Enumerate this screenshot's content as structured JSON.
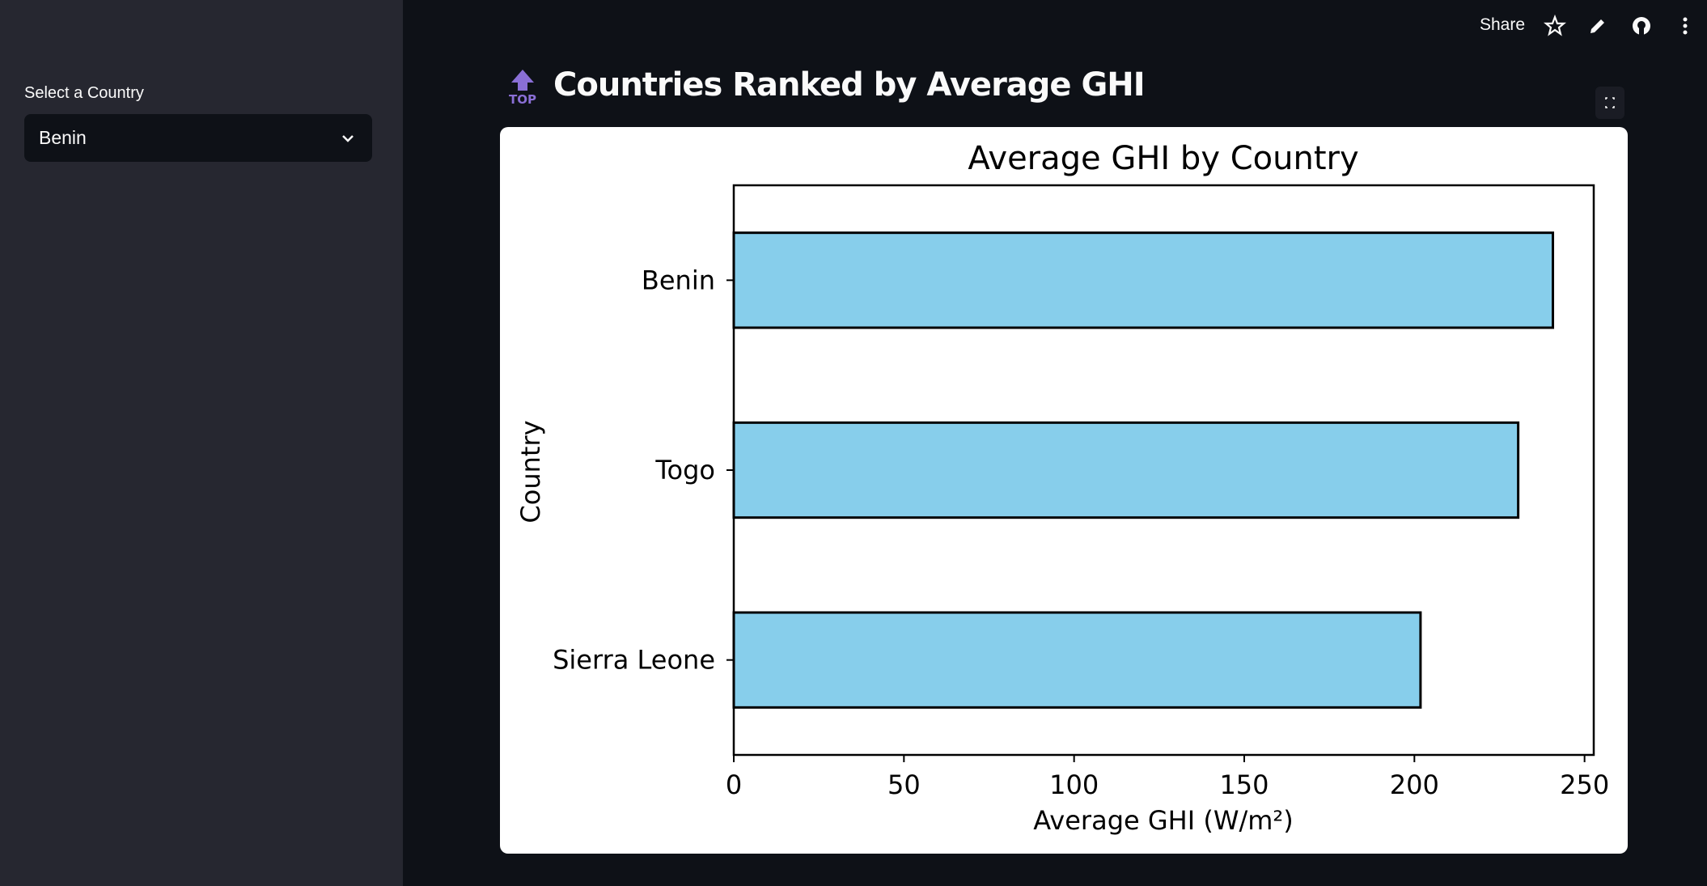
{
  "sidebar": {
    "select_label": "Select a Country",
    "selected": "Benin"
  },
  "toolbar": {
    "share": "Share"
  },
  "header": {
    "icon_label": "TOP",
    "title": "Countries Ranked by Average GHI"
  },
  "chart_data": {
    "type": "bar",
    "orientation": "horizontal",
    "title": "Average GHI by Country",
    "x_label": "Average GHI (W/m²)",
    "y_label": "Country",
    "categories": [
      "Benin",
      "Togo",
      "Sierra Leone"
    ],
    "values": [
      240.7,
      230.5,
      201.8
    ],
    "color": "#87ceeb",
    "edgecolor": "#000000",
    "xlim": [
      0,
      252.7
    ],
    "xticks": [
      0,
      50,
      100,
      150,
      200,
      250
    ],
    "grid": false
  }
}
